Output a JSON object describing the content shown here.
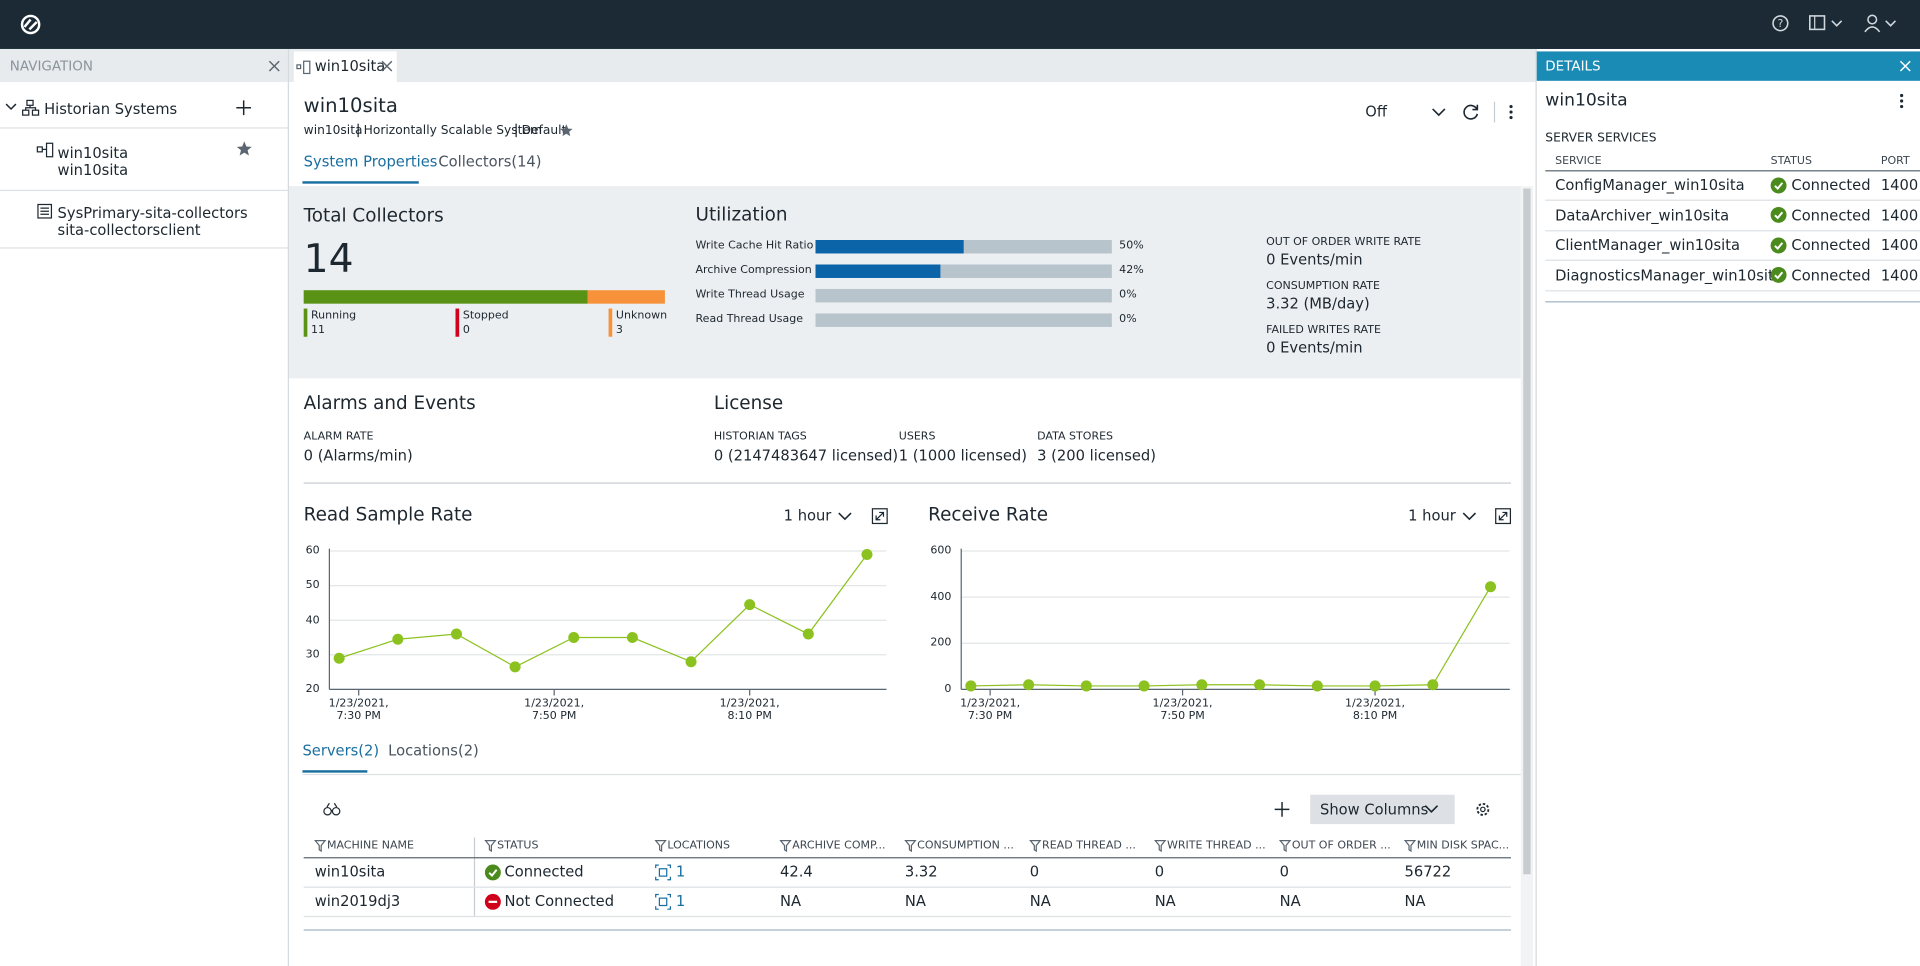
{
  "navigation": {
    "title": "NAVIGATION",
    "root": "Historian Systems",
    "items": [
      {
        "name": "win10sita",
        "subtitle": "win10sita"
      },
      {
        "name": "SysPrimary-sita-collectors",
        "subtitle": "sita-collectorsclient"
      }
    ]
  },
  "tab": "win10sita",
  "header": {
    "title": "win10sita",
    "subtitle": [
      "win10sita",
      "Horizontally Scalable System",
      "Default"
    ],
    "mode": "Off",
    "tabs": [
      "System Properties",
      "Collectors(14)"
    ]
  },
  "total_collectors": {
    "title": "Total Collectors",
    "count": 14,
    "statuses": [
      {
        "name": "Running",
        "value": 11,
        "color": "#5a9216"
      },
      {
        "name": "Stopped",
        "value": 0,
        "color": "#d0021b"
      },
      {
        "name": "Unknown",
        "value": 3,
        "color": "#f7923a"
      }
    ]
  },
  "utilization": {
    "title": "Utilization",
    "categories": [
      "Write Cache Hit Ratio",
      "Archive Compression",
      "Write Thread Usage",
      "Read Thread Usage"
    ],
    "values": [
      50,
      42,
      0,
      0
    ],
    "value_labels": [
      "50%",
      "42%",
      "0%",
      "0%"
    ],
    "xlim": [
      0,
      100
    ],
    "color": "#0b64a8"
  },
  "rates": [
    {
      "label": "OUT OF ORDER WRITE RATE",
      "value": "0 Events/min"
    },
    {
      "label": "CONSUMPTION RATE",
      "value": "3.32 (MB/day)"
    },
    {
      "label": "FAILED WRITES RATE",
      "value": "0 Events/min"
    }
  ],
  "alarms": {
    "title": "Alarms and Events",
    "label": "ALARM RATE",
    "value": "0 (Alarms/min)"
  },
  "license": {
    "title": "License",
    "items": [
      {
        "label": "HISTORIAN TAGS",
        "value": "0 (2147483647 licensed)"
      },
      {
        "label": "USERS",
        "value": "1 (1000 licensed)"
      },
      {
        "label": "DATA STORES",
        "value": "3 (200 licensed)"
      }
    ]
  },
  "chart_data": [
    {
      "type": "line",
      "title": "Read Sample Rate",
      "range": "1 hour",
      "color": "#8cc21f",
      "x": [
        "19:28",
        "19:34",
        "19:40",
        "19:46",
        "19:52",
        "19:58",
        "20:04",
        "20:10",
        "20:16",
        "20:22"
      ],
      "values": [
        29,
        34.5,
        36,
        26.5,
        35,
        35,
        28,
        44.5,
        36,
        59
      ],
      "xlim": [
        "19:27",
        "20:24"
      ],
      "xticks": [
        {
          "value": "19:30",
          "label": "1/23/2021, 7:30 PM"
        },
        {
          "value": "19:50",
          "label": "1/23/2021, 7:50 PM"
        },
        {
          "value": "20:10",
          "label": "1/23/2021, 8:10 PM"
        }
      ],
      "ylim": [
        20,
        60
      ],
      "yticks": [
        20,
        30,
        40,
        50,
        60
      ]
    },
    {
      "type": "line",
      "title": "Receive Rate",
      "range": "1 hour",
      "color": "#8cc21f",
      "x": [
        "19:28",
        "19:34",
        "19:40",
        "19:46",
        "19:52",
        "19:58",
        "20:04",
        "20:10",
        "20:16",
        "20:22"
      ],
      "values": [
        15,
        20,
        15,
        15,
        20,
        20,
        15,
        15,
        20,
        445
      ],
      "xlim": [
        "19:27",
        "20:24"
      ],
      "xticks": [
        {
          "value": "19:30",
          "label": "1/23/2021, 7:30 PM"
        },
        {
          "value": "19:50",
          "label": "1/23/2021, 7:50 PM"
        },
        {
          "value": "20:10",
          "label": "1/23/2021, 8:10 PM"
        }
      ],
      "ylim": [
        0,
        600
      ],
      "yticks": [
        0,
        200,
        400,
        600
      ]
    }
  ],
  "bottom_tabs": [
    "Servers(2)",
    "Locations(2)"
  ],
  "show_columns": "Show Columns",
  "servers_table": {
    "columns": [
      "MACHINE NAME",
      "STATUS",
      "LOCATIONS",
      "ARCHIVE COMP...",
      "CONSUMPTION ...",
      "READ THREAD ...",
      "WRITE THREAD ...",
      "OUT OF ORDER ...",
      "MIN DISK SPAC..."
    ],
    "rows": [
      [
        "win10sita",
        "Connected",
        "1",
        "42.4",
        "3.32",
        "0",
        "0",
        "0",
        "56722"
      ],
      [
        "win2019dj3",
        "Not Connected",
        "1",
        "NA",
        "NA",
        "NA",
        "NA",
        "NA",
        "NA"
      ]
    ]
  },
  "details": {
    "title": "DETAILS",
    "name": "win10sita",
    "section": "SERVER SERVICES",
    "columns": [
      "SERVICE",
      "STATUS",
      "PORT"
    ],
    "rows": [
      [
        "ConfigManager_win10sita",
        "Connected",
        "1400"
      ],
      [
        "DataArchiver_win10sita",
        "Connected",
        "1400"
      ],
      [
        "ClientManager_win10sita",
        "Connected",
        "1400"
      ],
      [
        "DiagnosticsManager_win10sita",
        "Connected",
        "1400"
      ]
    ]
  }
}
